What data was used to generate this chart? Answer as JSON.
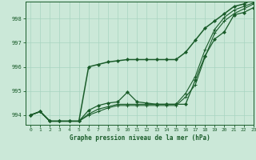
{
  "title": "Graphe pression niveau de la mer (hPa)",
  "background_color": "#cbe8d8",
  "plot_bg_color": "#cbe8d8",
  "grid_color": "#a8d4c0",
  "line_color": "#1a5c2a",
  "xlim": [
    -0.5,
    23
  ],
  "ylim": [
    993.6,
    998.7
  ],
  "yticks": [
    994,
    995,
    996,
    997,
    998
  ],
  "xticks": [
    0,
    1,
    2,
    3,
    4,
    5,
    6,
    7,
    8,
    9,
    10,
    11,
    12,
    13,
    14,
    15,
    16,
    17,
    18,
    19,
    20,
    21,
    22,
    23
  ],
  "series": [
    {
      "y": [
        994.0,
        994.15,
        993.75,
        993.75,
        993.75,
        993.75,
        994.0,
        994.15,
        994.3,
        994.4,
        994.4,
        994.4,
        994.4,
        994.4,
        994.4,
        994.4,
        994.75,
        995.25,
        996.4,
        997.4,
        997.9,
        998.2,
        998.4,
        998.6
      ],
      "marker": "+",
      "lw": 0.8
    },
    {
      "y": [
        994.0,
        994.15,
        993.75,
        993.75,
        993.75,
        993.75,
        994.05,
        994.25,
        994.35,
        994.45,
        994.45,
        994.45,
        994.45,
        994.45,
        994.45,
        994.45,
        994.9,
        995.6,
        996.7,
        997.55,
        998.05,
        998.35,
        998.5,
        998.65
      ],
      "marker": "+",
      "lw": 0.8
    },
    {
      "y": [
        994.0,
        994.15,
        993.75,
        993.75,
        993.75,
        993.75,
        994.2,
        994.4,
        994.5,
        994.55,
        994.95,
        994.55,
        994.5,
        994.45,
        994.45,
        994.45,
        994.45,
        995.45,
        996.45,
        997.15,
        997.45,
        998.15,
        998.25,
        998.45
      ],
      "marker": "D",
      "lw": 0.9
    },
    {
      "y": [
        994.0,
        994.15,
        993.75,
        993.75,
        993.75,
        993.75,
        996.0,
        996.1,
        996.2,
        996.25,
        996.3,
        996.3,
        996.3,
        996.3,
        996.3,
        996.3,
        996.6,
        997.1,
        997.6,
        997.9,
        998.2,
        998.5,
        998.6,
        998.8
      ],
      "marker": "D",
      "lw": 1.1
    }
  ]
}
